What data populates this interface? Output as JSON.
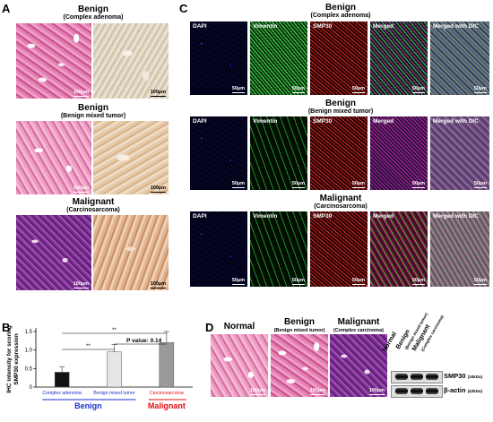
{
  "panels": {
    "A": {
      "letter": "A",
      "rows": [
        {
          "title": "Benign",
          "subtitle": "(Complex adenoma)",
          "scale": "100µm"
        },
        {
          "title": "Benign",
          "subtitle": "(Benign mixed tumor)",
          "scale": "100µm"
        },
        {
          "title": "Malignant",
          "subtitle": "(Carcinosarcoma)",
          "scale": "100µm"
        }
      ]
    },
    "C": {
      "letter": "C",
      "channels": [
        "DAPI",
        "Vimentin",
        "SMP30",
        "Merged",
        "Merged with DIC"
      ],
      "rows": [
        {
          "title": "Benign",
          "subtitle": "(Complex adenoma)"
        },
        {
          "title": "Benign",
          "subtitle": "(Benign mixed tumor)"
        },
        {
          "title": "Malignant",
          "subtitle": "(Carcinosarcoma)"
        }
      ],
      "scale": "50µm"
    },
    "B": {
      "letter": "B",
      "sig_left": "**",
      "sig_top": "**",
      "pvalue": "P value: 0.14",
      "group_benign": "Benign",
      "group_malignant": "Malignant"
    },
    "D": {
      "letter": "D",
      "images": [
        {
          "title": "Normal",
          "subtitle": ""
        },
        {
          "title": "Benign",
          "subtitle": "(Benign mixed tumor)"
        },
        {
          "title": "Malignant",
          "subtitle": "(Complex carcinoma)"
        }
      ],
      "scale": "100µm",
      "blot_lanes": [
        "Normal",
        "Benign",
        "(Benign mixed tumor)",
        "Malignant",
        "(Complex carcinoma)"
      ],
      "blot_rows": [
        {
          "protein": "SMP30",
          "kda": "(34kDa)"
        },
        {
          "protein": "β-actin",
          "kda": "(42kDa)"
        }
      ]
    }
  },
  "chart_data": {
    "type": "bar",
    "ylabel": "IHC intensity for scoring SMP30 expression",
    "categories": [
      "Complex adenoma",
      "Benign mixed tumor",
      "Carcinosarcoma"
    ],
    "values": [
      0.4,
      0.95,
      1.2
    ],
    "errors": [
      0.15,
      0.2,
      0.3
    ],
    "yticks": [
      0,
      0.5,
      1.0,
      1.5
    ],
    "ylim": [
      0,
      1.5
    ],
    "bar_colors": [
      "#111111",
      "#e6e6e6",
      "#9a9a9a"
    ],
    "category_colors": [
      "#1a2fd0",
      "#1a2fd0",
      "#e01010"
    ],
    "group_colors": {
      "benign": "#1a2fd0",
      "malignant": "#e01010"
    }
  }
}
